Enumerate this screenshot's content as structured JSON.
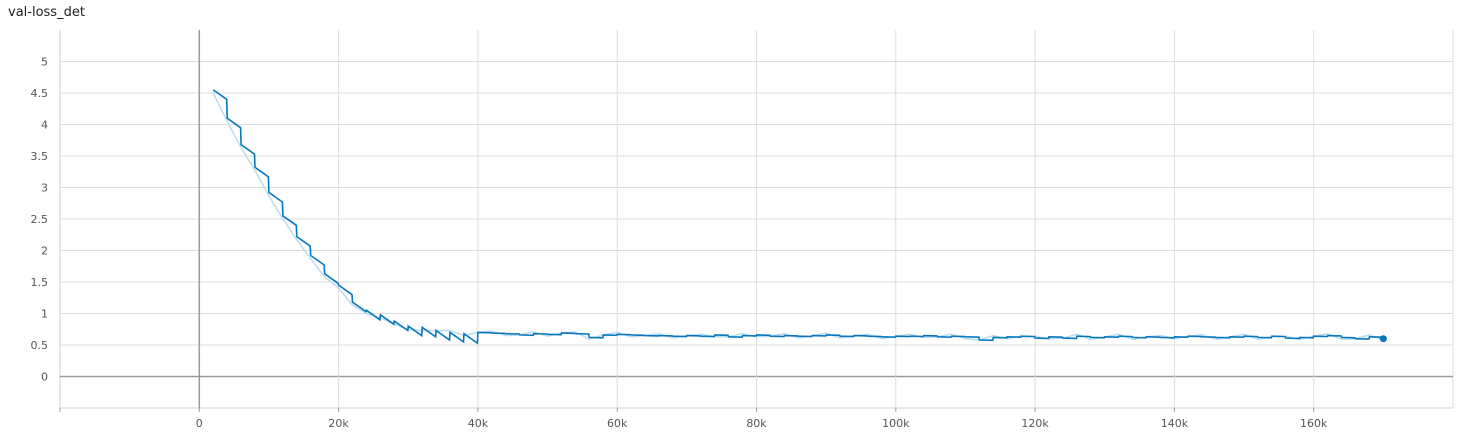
{
  "chart_data": {
    "type": "line",
    "title": "val-loss_det",
    "xlabel": "",
    "ylabel": "",
    "xlim": [
      -20000,
      180000
    ],
    "ylim": [
      -0.5,
      5.5
    ],
    "x_ticks": [
      0,
      20000,
      40000,
      60000,
      80000,
      100000,
      120000,
      140000,
      160000
    ],
    "x_tick_labels": [
      "0",
      "20k",
      "40k",
      "60k",
      "80k",
      "100k",
      "120k",
      "140k",
      "160k"
    ],
    "y_ticks": [
      0,
      0.5,
      1,
      1.5,
      2,
      2.5,
      3,
      3.5,
      4,
      4.5,
      5
    ],
    "y_tick_labels": [
      "0",
      "0.5",
      "1",
      "1.5",
      "2",
      "2.5",
      "3",
      "3.5",
      "4",
      "4.5",
      "5"
    ],
    "grid": true,
    "colors": {
      "smoothed": "#0877bd",
      "raw": "#b9dcf0",
      "grid": "#dddddd",
      "axis": "#999999"
    },
    "series": [
      {
        "x": [
          2000,
          4000,
          6000,
          8000,
          10000,
          12000,
          14000,
          16000,
          18000,
          20000,
          22000,
          24000,
          26000,
          28000,
          30000,
          32000,
          34000,
          36000,
          38000,
          40000,
          42000,
          44000,
          46000,
          48000,
          50000,
          52000,
          54000,
          56000,
          58000,
          60000,
          62000,
          64000,
          66000,
          68000,
          70000,
          72000,
          74000,
          76000,
          78000,
          80000,
          82000,
          84000,
          86000,
          88000,
          90000,
          92000,
          94000,
          96000,
          98000,
          100000,
          102000,
          104000,
          106000,
          108000,
          110000,
          112000,
          114000,
          116000,
          118000,
          120000,
          122000,
          124000,
          126000,
          128000,
          130000,
          132000,
          134000,
          136000,
          138000,
          140000,
          142000,
          144000,
          146000,
          148000,
          150000,
          152000,
          154000,
          156000,
          158000,
          160000,
          162000,
          164000,
          166000,
          168000,
          170000
        ],
        "y": [
          4.55,
          4.1,
          3.68,
          3.32,
          2.92,
          2.55,
          2.22,
          1.92,
          1.63,
          1.45,
          1.18,
          1.05,
          0.98,
          0.88,
          0.8,
          0.78,
          0.73,
          0.7,
          0.68,
          0.7,
          0.69,
          0.68,
          0.66,
          0.68,
          0.67,
          0.69,
          0.68,
          0.62,
          0.66,
          0.67,
          0.66,
          0.65,
          0.65,
          0.64,
          0.65,
          0.64,
          0.66,
          0.63,
          0.65,
          0.66,
          0.64,
          0.65,
          0.64,
          0.65,
          0.66,
          0.64,
          0.65,
          0.64,
          0.63,
          0.64,
          0.64,
          0.65,
          0.63,
          0.64,
          0.63,
          0.58,
          0.62,
          0.63,
          0.64,
          0.61,
          0.63,
          0.61,
          0.64,
          0.62,
          0.63,
          0.64,
          0.62,
          0.63,
          0.62,
          0.63,
          0.64,
          0.63,
          0.62,
          0.63,
          0.64,
          0.62,
          0.64,
          0.61,
          0.62,
          0.64,
          0.65,
          0.62,
          0.6,
          0.63,
          0.6
        ]
      }
    ]
  }
}
